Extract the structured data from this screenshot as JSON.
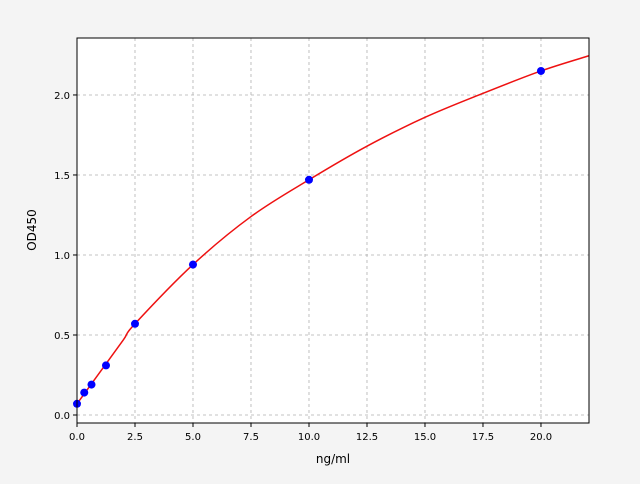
{
  "chart_data": {
    "type": "scatter",
    "title": "",
    "xlabel": "ng/ml",
    "ylabel": "OD450",
    "xlim": [
      0,
      22.07
    ],
    "ylim": [
      -0.05,
      2.356
    ],
    "grid": true,
    "x_ticks": [
      "0.0",
      "2.5",
      "5.0",
      "7.5",
      "10.0",
      "12.5",
      "15.0",
      "17.5",
      "20.0"
    ],
    "y_ticks": [
      "0.0",
      "0.5",
      "1.0",
      "1.5",
      "2.0"
    ],
    "points": {
      "color": "#0000ff",
      "x": [
        0,
        0.3125,
        0.625,
        1.25,
        2.5,
        5,
        10,
        20
      ],
      "y": [
        0.07,
        0.14,
        0.19,
        0.31,
        0.57,
        0.94,
        1.47,
        2.15
      ]
    },
    "fit_curve": {
      "color": "#ee1111",
      "x": [
        0,
        1,
        2,
        2.5,
        5,
        7.5,
        10,
        12.5,
        15,
        17.5,
        20,
        22.07
      ],
      "y": [
        0.07,
        0.27,
        0.47,
        0.57,
        0.94,
        1.24,
        1.47,
        1.68,
        1.86,
        2.01,
        2.15,
        2.245
      ]
    }
  }
}
